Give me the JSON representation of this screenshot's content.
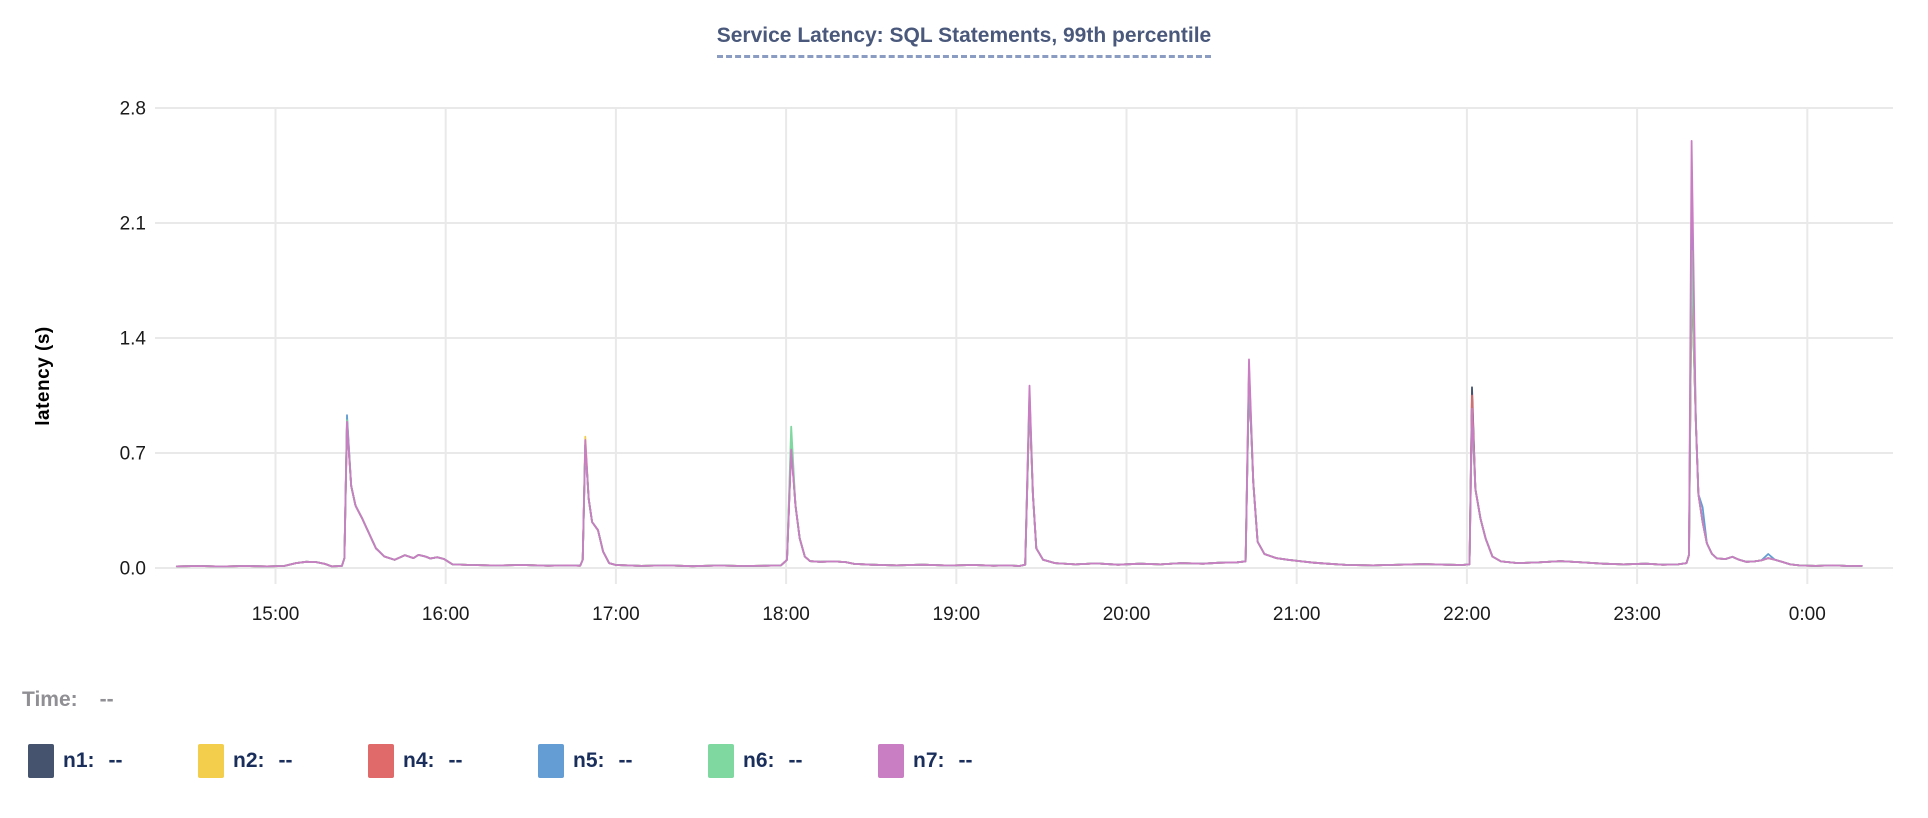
{
  "chart": {
    "title": "Service Latency: SQL Statements, 99th percentile",
    "title_color": "#49587b",
    "ylabel": "latency (s)",
    "time_label": "Time:",
    "time_value": "--",
    "grid_color": "#e9e9e9",
    "tick_color": "#1a1a1a"
  },
  "chart_data": {
    "type": "line",
    "title": "Service Latency: SQL Statements, 99th percentile",
    "xlabel": "",
    "ylabel": "latency (s)",
    "ylim": [
      0,
      2.8
    ],
    "grid": true,
    "legend_position": "bottom",
    "yticks": [
      {
        "v": 0.0,
        "label": "0.0"
      },
      {
        "v": 0.7,
        "label": "0.7"
      },
      {
        "v": 1.4,
        "label": "1.4"
      },
      {
        "v": 2.1,
        "label": "2.1"
      },
      {
        "v": 2.8,
        "label": "2.8"
      }
    ],
    "xticks": [
      {
        "t": 15,
        "label": "15:00"
      },
      {
        "t": 16,
        "label": "16:00"
      },
      {
        "t": 17,
        "label": "17:00"
      },
      {
        "t": 18,
        "label": "18:00"
      },
      {
        "t": 19,
        "label": "19:00"
      },
      {
        "t": 20,
        "label": "20:00"
      },
      {
        "t": 21,
        "label": "21:00"
      },
      {
        "t": 22,
        "label": "22:00"
      },
      {
        "t": 23,
        "label": "23:00"
      },
      {
        "t": 24,
        "label": "0:00"
      }
    ],
    "x_range_hours": [
      14.42,
      24.32
    ],
    "base_points": [
      [
        14.42,
        0.01
      ],
      [
        14.55,
        0.012
      ],
      [
        14.68,
        0.009
      ],
      [
        14.82,
        0.012
      ],
      [
        14.95,
        0.01
      ],
      [
        15.05,
        0.012
      ],
      [
        15.12,
        0.03
      ],
      [
        15.18,
        0.038
      ],
      [
        15.24,
        0.036
      ],
      [
        15.29,
        0.025
      ],
      [
        15.33,
        0.01
      ],
      [
        15.39,
        0.012
      ],
      [
        15.405,
        0.06
      ],
      [
        15.42,
        0.88
      ],
      [
        15.445,
        0.5
      ],
      [
        15.47,
        0.38
      ],
      [
        15.51,
        0.3
      ],
      [
        15.55,
        0.21
      ],
      [
        15.59,
        0.12
      ],
      [
        15.64,
        0.07
      ],
      [
        15.7,
        0.05
      ],
      [
        15.76,
        0.078
      ],
      [
        15.81,
        0.06
      ],
      [
        15.84,
        0.08
      ],
      [
        15.88,
        0.07
      ],
      [
        15.91,
        0.058
      ],
      [
        15.95,
        0.065
      ],
      [
        15.99,
        0.055
      ],
      [
        16.04,
        0.022
      ],
      [
        16.15,
        0.018
      ],
      [
        16.3,
        0.015
      ],
      [
        16.45,
        0.018
      ],
      [
        16.6,
        0.014
      ],
      [
        16.72,
        0.016
      ],
      [
        16.79,
        0.014
      ],
      [
        16.805,
        0.05
      ],
      [
        16.82,
        0.75
      ],
      [
        16.84,
        0.42
      ],
      [
        16.86,
        0.28
      ],
      [
        16.895,
        0.23
      ],
      [
        16.925,
        0.1
      ],
      [
        16.96,
        0.03
      ],
      [
        17.0,
        0.018
      ],
      [
        17.15,
        0.013
      ],
      [
        17.3,
        0.016
      ],
      [
        17.45,
        0.011
      ],
      [
        17.6,
        0.015
      ],
      [
        17.75,
        0.012
      ],
      [
        17.88,
        0.014
      ],
      [
        17.97,
        0.016
      ],
      [
        18.005,
        0.05
      ],
      [
        18.03,
        0.74
      ],
      [
        18.055,
        0.38
      ],
      [
        18.08,
        0.18
      ],
      [
        18.11,
        0.07
      ],
      [
        18.14,
        0.042
      ],
      [
        18.2,
        0.038
      ],
      [
        18.28,
        0.04
      ],
      [
        18.35,
        0.036
      ],
      [
        18.4,
        0.025
      ],
      [
        18.5,
        0.02
      ],
      [
        18.65,
        0.016
      ],
      [
        18.8,
        0.02
      ],
      [
        18.95,
        0.015
      ],
      [
        19.1,
        0.018
      ],
      [
        19.22,
        0.014
      ],
      [
        19.3,
        0.016
      ],
      [
        19.37,
        0.012
      ],
      [
        19.405,
        0.02
      ],
      [
        19.43,
        1.02
      ],
      [
        19.45,
        0.45
      ],
      [
        19.47,
        0.12
      ],
      [
        19.51,
        0.05
      ],
      [
        19.58,
        0.03
      ],
      [
        19.7,
        0.022
      ],
      [
        19.82,
        0.028
      ],
      [
        19.95,
        0.02
      ],
      [
        20.08,
        0.026
      ],
      [
        20.2,
        0.022
      ],
      [
        20.32,
        0.03
      ],
      [
        20.45,
        0.026
      ],
      [
        20.55,
        0.032
      ],
      [
        20.65,
        0.035
      ],
      [
        20.7,
        0.04
      ],
      [
        20.72,
        1.17
      ],
      [
        20.745,
        0.52
      ],
      [
        20.77,
        0.16
      ],
      [
        20.81,
        0.085
      ],
      [
        20.88,
        0.06
      ],
      [
        20.95,
        0.05
      ],
      [
        21.03,
        0.04
      ],
      [
        21.1,
        0.032
      ],
      [
        21.18,
        0.026
      ],
      [
        21.3,
        0.018
      ],
      [
        21.45,
        0.016
      ],
      [
        21.6,
        0.02
      ],
      [
        21.75,
        0.024
      ],
      [
        21.88,
        0.02
      ],
      [
        21.97,
        0.018
      ],
      [
        22.015,
        0.022
      ],
      [
        22.03,
        0.95
      ],
      [
        22.05,
        0.48
      ],
      [
        22.08,
        0.3
      ],
      [
        22.11,
        0.18
      ],
      [
        22.15,
        0.07
      ],
      [
        22.2,
        0.04
      ],
      [
        22.3,
        0.03
      ],
      [
        22.42,
        0.034
      ],
      [
        22.55,
        0.042
      ],
      [
        22.68,
        0.034
      ],
      [
        22.8,
        0.026
      ],
      [
        22.92,
        0.022
      ],
      [
        23.05,
        0.026
      ],
      [
        23.15,
        0.02
      ],
      [
        23.24,
        0.022
      ],
      [
        23.29,
        0.03
      ],
      [
        23.305,
        0.08
      ],
      [
        23.32,
        1.85
      ],
      [
        23.345,
        0.9
      ],
      [
        23.36,
        0.45
      ],
      [
        23.385,
        0.28
      ],
      [
        23.41,
        0.15
      ],
      [
        23.44,
        0.085
      ],
      [
        23.47,
        0.058
      ],
      [
        23.52,
        0.055
      ],
      [
        23.56,
        0.068
      ],
      [
        23.6,
        0.05
      ],
      [
        23.64,
        0.038
      ],
      [
        23.69,
        0.04
      ],
      [
        23.73,
        0.046
      ],
      [
        23.77,
        0.06
      ],
      [
        23.81,
        0.05
      ],
      [
        23.85,
        0.038
      ],
      [
        23.9,
        0.022
      ],
      [
        23.96,
        0.015
      ],
      [
        24.05,
        0.013
      ],
      [
        24.15,
        0.016
      ],
      [
        24.25,
        0.012
      ],
      [
        24.32,
        0.013
      ]
    ],
    "series": [
      {
        "name": "n1",
        "color": "#46536e",
        "value": "--",
        "overrides": [
          [
            22.03,
            1.1
          ],
          [
            23.32,
            1.8
          ]
        ]
      },
      {
        "name": "n2",
        "color": "#f2ce4c",
        "value": "--",
        "overrides": [
          [
            15.42,
            0.91
          ],
          [
            16.82,
            0.8
          ],
          [
            18.03,
            0.8
          ],
          [
            20.72,
            1.21
          ],
          [
            22.03,
            0.96
          ],
          [
            23.32,
            1.86
          ]
        ]
      },
      {
        "name": "n4",
        "color": "#e0696a",
        "value": "--",
        "overrides": [
          [
            22.03,
            1.05
          ],
          [
            23.32,
            1.82
          ]
        ]
      },
      {
        "name": "n5",
        "color": "#639dd3",
        "value": "--",
        "overrides": [
          [
            15.42,
            0.93
          ],
          [
            18.03,
            0.76
          ],
          [
            19.43,
            1.04
          ],
          [
            23.32,
            2.15
          ],
          [
            23.385,
            0.37
          ],
          [
            23.77,
            0.085
          ]
        ]
      },
      {
        "name": "n6",
        "color": "#7fd8a0",
        "value": "--",
        "overrides": [
          [
            15.42,
            0.9
          ],
          [
            18.03,
            0.86
          ],
          [
            19.43,
            1.07
          ],
          [
            20.72,
            1.22
          ],
          [
            23.32,
            1.93
          ]
        ]
      },
      {
        "name": "n7",
        "color": "#c97dc2",
        "value": "--",
        "overrides": [
          [
            15.42,
            0.89
          ],
          [
            16.82,
            0.78
          ],
          [
            18.03,
            0.72
          ],
          [
            19.43,
            1.11
          ],
          [
            20.72,
            1.27
          ],
          [
            22.03,
            0.97
          ],
          [
            23.32,
            2.6
          ]
        ]
      }
    ]
  }
}
